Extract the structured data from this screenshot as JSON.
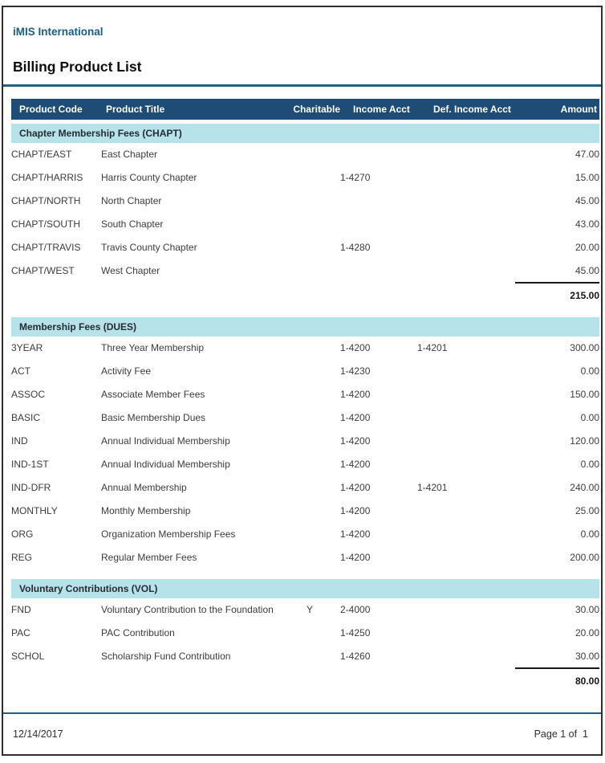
{
  "report": {
    "org_name": "iMIS International",
    "title": "Billing Product List",
    "footer": {
      "date": "12/14/2017",
      "page": "Page 1 of  1"
    }
  },
  "colors": {
    "header_bg": "#1E4C75",
    "section_bg": "#B6E2EA",
    "brand_text": "#185E82",
    "rule": "#245E86"
  },
  "table": {
    "columns": [
      "Product Code",
      "Product Title",
      "Charitable",
      "Income Acct",
      "Def. Income Acct",
      "Amount"
    ],
    "sections": [
      {
        "heading": "Chapter Membership Fees (CHAPT)",
        "rows": [
          {
            "code": "CHAPT/EAST",
            "title": "East Chapter",
            "charitable": "",
            "income": "",
            "def_income": "",
            "amount": "47.00"
          },
          {
            "code": "CHAPT/HARRIS",
            "title": "Harris County Chapter",
            "charitable": "",
            "income": "1-4270",
            "def_income": "",
            "amount": "15.00"
          },
          {
            "code": "CHAPT/NORTH",
            "title": "North Chapter",
            "charitable": "",
            "income": "",
            "def_income": "",
            "amount": "45.00"
          },
          {
            "code": "CHAPT/SOUTH",
            "title": "South Chapter",
            "charitable": "",
            "income": "",
            "def_income": "",
            "amount": "43.00"
          },
          {
            "code": "CHAPT/TRAVIS",
            "title": "Travis County Chapter",
            "charitable": "",
            "income": "1-4280",
            "def_income": "",
            "amount": "20.00"
          },
          {
            "code": "CHAPT/WEST",
            "title": "West Chapter",
            "charitable": "",
            "income": "",
            "def_income": "",
            "amount": "45.00"
          }
        ],
        "subtotal": "215.00"
      },
      {
        "heading": "Membership Fees (DUES)",
        "rows": [
          {
            "code": "3YEAR",
            "title": "Three Year Membership",
            "charitable": "",
            "income": "1-4200",
            "def_income": "1-4201",
            "amount": "300.00"
          },
          {
            "code": "ACT",
            "title": "Activity Fee",
            "charitable": "",
            "income": "1-4230",
            "def_income": "",
            "amount": "0.00"
          },
          {
            "code": "ASSOC",
            "title": "Associate Member Fees",
            "charitable": "",
            "income": "1-4200",
            "def_income": "",
            "amount": "150.00"
          },
          {
            "code": "BASIC",
            "title": "Basic Membership Dues",
            "charitable": "",
            "income": "1-4200",
            "def_income": "",
            "amount": "0.00"
          },
          {
            "code": "IND",
            "title": "Annual Individual Membership",
            "charitable": "",
            "income": "1-4200",
            "def_income": "",
            "amount": "120.00"
          },
          {
            "code": "IND-1ST",
            "title": "Annual Individual Membership",
            "charitable": "",
            "income": "1-4200",
            "def_income": "",
            "amount": "0.00"
          },
          {
            "code": "IND-DFR",
            "title": "Annual Membership",
            "charitable": "",
            "income": "1-4200",
            "def_income": "1-4201",
            "amount": "240.00"
          },
          {
            "code": "MONTHLY",
            "title": "Monthly Membership",
            "charitable": "",
            "income": "1-4200",
            "def_income": "",
            "amount": "25.00"
          },
          {
            "code": "ORG",
            "title": "Organization Membership Fees",
            "charitable": "",
            "income": "1-4200",
            "def_income": "",
            "amount": "0.00"
          },
          {
            "code": "REG",
            "title": "Regular Member Fees",
            "charitable": "",
            "income": "1-4200",
            "def_income": "",
            "amount": "200.00"
          }
        ],
        "subtotal": null
      },
      {
        "heading": "Voluntary Contributions (VOL)",
        "rows": [
          {
            "code": "FND",
            "title": "Voluntary Contribution to the Foundation",
            "charitable": "Y",
            "income": "2-4000",
            "def_income": "",
            "amount": "30.00"
          },
          {
            "code": "PAC",
            "title": "PAC Contribution",
            "charitable": "",
            "income": "1-4250",
            "def_income": "",
            "amount": "20.00"
          },
          {
            "code": "SCHOL",
            "title": "Scholarship Fund Contribution",
            "charitable": "",
            "income": "1-4260",
            "def_income": "",
            "amount": "30.00"
          }
        ],
        "subtotal": "80.00"
      }
    ]
  }
}
